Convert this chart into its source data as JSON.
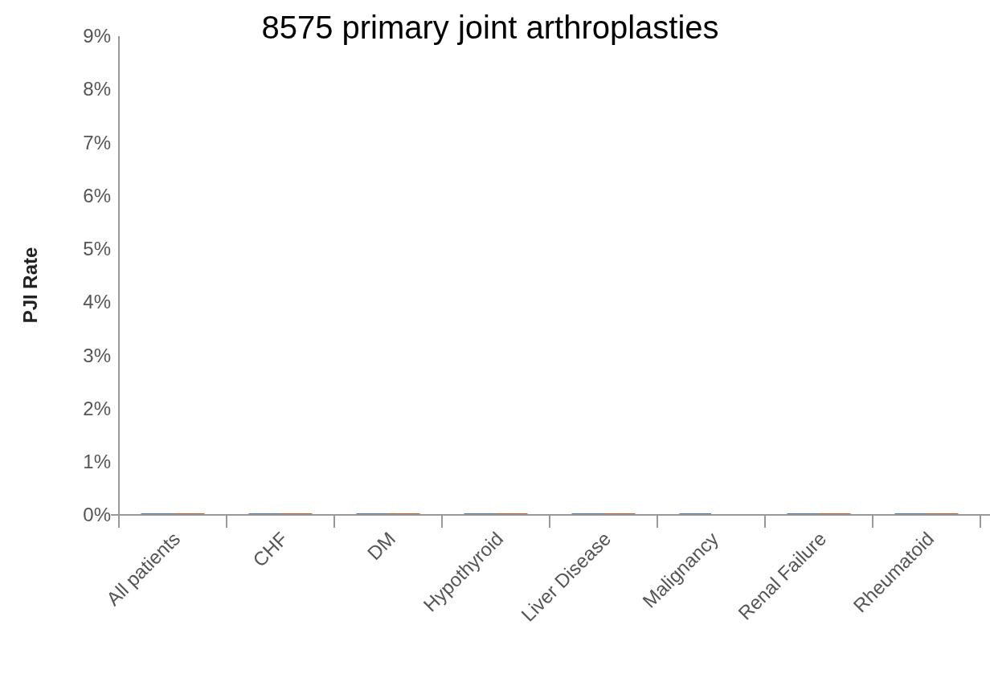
{
  "chart_data": {
    "type": "bar",
    "title": "8575 primary joint arthroplasties",
    "ylabel": "PJI Rate",
    "categories": [
      "All patients",
      "CHF",
      "DM",
      "Hypothyroid",
      "Liver Disease",
      "Malignancy",
      "Renal Failure",
      "Rheumatoid"
    ],
    "series": [
      {
        "color": "#4f76c2",
        "values": [
          0.03,
          0.03,
          0.03,
          0.03,
          0.03,
          0.03,
          0.03,
          0.03
        ]
      },
      {
        "color": "#c5622a",
        "values": [
          0.03,
          0.03,
          0.03,
          0.03,
          0.03,
          null,
          0.03,
          0.03
        ]
      }
    ],
    "ylim": [
      0,
      9
    ],
    "yticks": [
      {
        "value": 0,
        "label": "0%"
      },
      {
        "value": 1,
        "label": "1%"
      },
      {
        "value": 2,
        "label": "2%"
      },
      {
        "value": 3,
        "label": "3%"
      },
      {
        "value": 4,
        "label": "4%"
      },
      {
        "value": 5,
        "label": "5%"
      },
      {
        "value": 6,
        "label": "6%"
      },
      {
        "value": 7,
        "label": "7%"
      },
      {
        "value": 8,
        "label": "8%"
      },
      {
        "value": 9,
        "label": "9%"
      }
    ],
    "grid": false
  }
}
